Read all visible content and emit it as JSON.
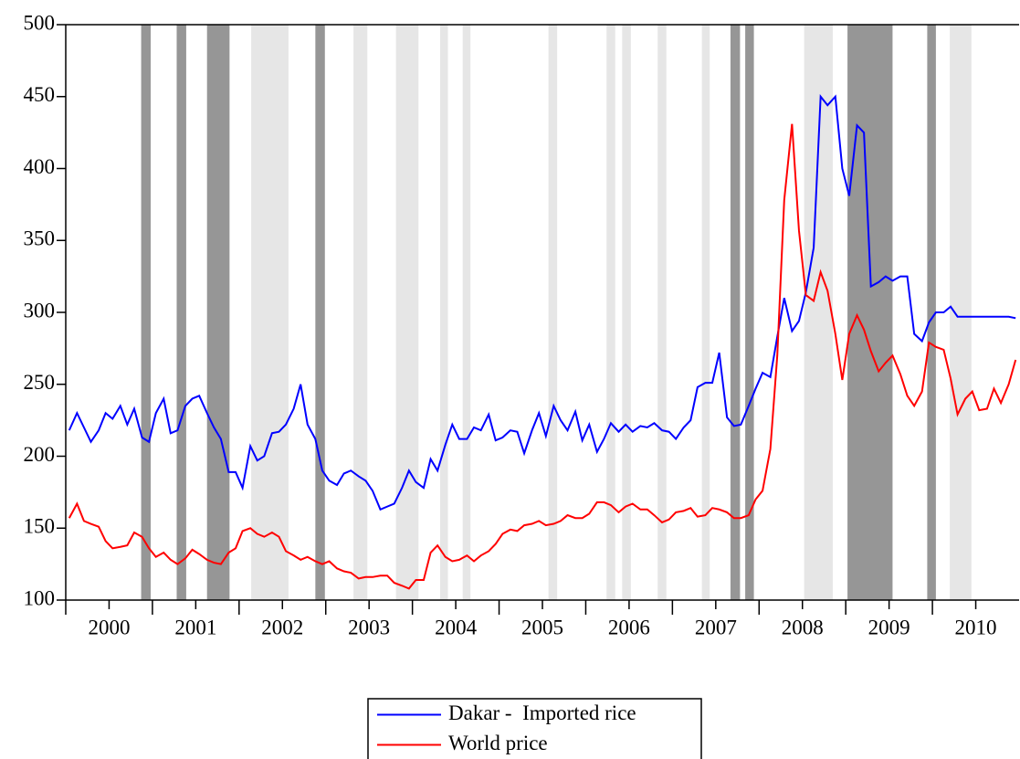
{
  "chart_data": {
    "type": "line",
    "x": [
      2000.04,
      2000.13,
      2000.21,
      2000.29,
      2000.38,
      2000.46,
      2000.54,
      2000.63,
      2000.71,
      2000.79,
      2000.88,
      2000.96,
      2001.04,
      2001.13,
      2001.21,
      2001.29,
      2001.38,
      2001.46,
      2001.54,
      2001.63,
      2001.71,
      2001.79,
      2001.88,
      2001.96,
      2002.04,
      2002.13,
      2002.21,
      2002.29,
      2002.38,
      2002.46,
      2002.54,
      2002.63,
      2002.71,
      2002.79,
      2002.88,
      2002.96,
      2003.04,
      2003.13,
      2003.21,
      2003.29,
      2003.38,
      2003.46,
      2003.54,
      2003.63,
      2003.71,
      2003.79,
      2003.88,
      2003.96,
      2004.04,
      2004.13,
      2004.21,
      2004.29,
      2004.38,
      2004.46,
      2004.54,
      2004.63,
      2004.71,
      2004.79,
      2004.88,
      2004.96,
      2005.04,
      2005.13,
      2005.21,
      2005.29,
      2005.38,
      2005.46,
      2005.54,
      2005.63,
      2005.71,
      2005.79,
      2005.88,
      2005.96,
      2006.04,
      2006.13,
      2006.21,
      2006.29,
      2006.38,
      2006.46,
      2006.54,
      2006.63,
      2006.71,
      2006.79,
      2006.88,
      2006.96,
      2007.04,
      2007.13,
      2007.21,
      2007.29,
      2007.38,
      2007.46,
      2007.54,
      2007.63,
      2007.71,
      2007.79,
      2007.88,
      2007.96,
      2008.04,
      2008.13,
      2008.21,
      2008.29,
      2008.38,
      2008.46,
      2008.54,
      2008.63,
      2008.71,
      2008.79,
      2008.88,
      2008.96,
      2009.04,
      2009.13,
      2009.21,
      2009.29,
      2009.38,
      2009.46,
      2009.54,
      2009.63,
      2009.71,
      2009.79,
      2009.88,
      2009.96,
      2010.04,
      2010.13,
      2010.21,
      2010.29,
      2010.38,
      2010.46,
      2010.54,
      2010.63,
      2010.71,
      2010.79,
      2010.88,
      2010.96
    ],
    "series": [
      {
        "name": "Dakar -  Imported rice",
        "color": "#0000ff",
        "values": [
          218,
          230,
          220,
          210,
          218,
          230,
          226,
          235,
          222,
          233,
          213,
          210,
          230,
          240,
          216,
          218,
          235,
          240,
          242,
          230,
          220,
          212,
          189,
          189,
          178,
          207,
          197,
          200,
          216,
          217,
          222,
          233,
          250,
          222,
          212,
          190,
          183,
          180,
          188,
          190,
          186,
          183,
          176,
          163,
          165,
          167,
          178,
          190,
          182,
          178,
          198,
          190,
          208,
          222,
          212,
          212,
          220,
          218,
          229,
          211,
          213,
          218,
          217,
          202,
          218,
          230,
          214,
          235,
          225,
          218,
          231,
          211,
          222,
          203,
          212,
          223,
          217,
          222,
          217,
          221,
          220,
          223,
          218,
          217,
          212,
          220,
          225,
          248,
          251,
          251,
          272,
          227,
          221,
          222,
          235,
          247,
          258,
          255,
          283,
          310,
          287,
          294,
          314,
          345,
          450,
          444,
          450,
          400,
          381,
          430,
          425,
          318,
          321,
          325,
          322,
          325,
          325,
          285,
          280,
          293,
          300,
          300,
          304,
          297,
          297,
          297,
          297,
          297,
          297,
          297,
          297,
          296
        ]
      },
      {
        "name": "World price",
        "color": "#ff0000",
        "values": [
          157,
          167,
          155,
          153,
          151,
          141,
          136,
          137,
          138,
          147,
          144,
          136,
          130,
          133,
          128,
          125,
          129,
          135,
          132,
          128,
          126,
          125,
          133,
          136,
          148,
          150,
          146,
          144,
          147,
          144,
          134,
          131,
          128,
          130,
          127,
          125,
          127,
          122,
          120,
          119,
          115,
          116,
          116,
          117,
          117,
          112,
          110,
          108,
          114,
          114,
          133,
          138,
          130,
          127,
          128,
          131,
          127,
          131,
          134,
          139,
          146,
          149,
          148,
          152,
          153,
          155,
          152,
          153,
          155,
          159,
          157,
          157,
          160,
          168,
          168,
          166,
          161,
          165,
          167,
          163,
          163,
          159,
          154,
          156,
          161,
          162,
          164,
          158,
          159,
          164,
          163,
          161,
          157,
          157,
          159,
          170,
          176,
          205,
          270,
          378,
          431,
          357,
          312,
          308,
          328,
          315,
          285,
          253,
          285,
          298,
          288,
          273,
          259,
          265,
          270,
          257,
          242,
          235,
          245,
          279,
          276,
          274,
          254,
          229,
          240,
          245,
          232,
          233,
          247,
          237,
          250,
          267
        ]
      }
    ],
    "bands": [
      {
        "start": 2000.87,
        "end": 2000.98,
        "color": "#969696"
      },
      {
        "start": 2001.28,
        "end": 2001.39,
        "color": "#969696"
      },
      {
        "start": 2001.63,
        "end": 2001.89,
        "color": "#969696"
      },
      {
        "start": 2002.88,
        "end": 2002.99,
        "color": "#969696"
      },
      {
        "start": 2007.67,
        "end": 2007.78,
        "color": "#969696"
      },
      {
        "start": 2007.84,
        "end": 2007.94,
        "color": "#969696"
      },
      {
        "start": 2009.02,
        "end": 2009.54,
        "color": "#969696"
      },
      {
        "start": 2009.94,
        "end": 2010.04,
        "color": "#969696"
      },
      {
        "start": 2002.14,
        "end": 2002.57,
        "color": "#e6e6e6"
      },
      {
        "start": 2003.32,
        "end": 2003.48,
        "color": "#e6e6e6"
      },
      {
        "start": 2003.81,
        "end": 2004.07,
        "color": "#e6e6e6"
      },
      {
        "start": 2004.32,
        "end": 2004.41,
        "color": "#e6e6e6"
      },
      {
        "start": 2004.58,
        "end": 2004.67,
        "color": "#e6e6e6"
      },
      {
        "start": 2005.57,
        "end": 2005.67,
        "color": "#e6e6e6"
      },
      {
        "start": 2006.24,
        "end": 2006.34,
        "color": "#e6e6e6"
      },
      {
        "start": 2006.42,
        "end": 2006.52,
        "color": "#e6e6e6"
      },
      {
        "start": 2006.83,
        "end": 2006.93,
        "color": "#e6e6e6"
      },
      {
        "start": 2007.34,
        "end": 2007.43,
        "color": "#e6e6e6"
      },
      {
        "start": 2008.52,
        "end": 2008.85,
        "color": "#e6e6e6"
      },
      {
        "start": 2010.2,
        "end": 2010.45,
        "color": "#e6e6e6"
      }
    ],
    "xlim": [
      2000,
      2011
    ],
    "xticks": [
      {
        "value": 2000.5,
        "label": "2000"
      },
      {
        "value": 2001.5,
        "label": "2001"
      },
      {
        "value": 2002.5,
        "label": "2002"
      },
      {
        "value": 2003.5,
        "label": "2003"
      },
      {
        "value": 2004.5,
        "label": "2004"
      },
      {
        "value": 2005.5,
        "label": "2005"
      },
      {
        "value": 2006.5,
        "label": "2006"
      },
      {
        "value": 2007.5,
        "label": "2007"
      },
      {
        "value": 2008.5,
        "label": "2008"
      },
      {
        "value": 2009.5,
        "label": "2009"
      },
      {
        "value": 2010.5,
        "label": "2010"
      }
    ],
    "ylim": [
      100,
      500
    ],
    "yticks": [
      100,
      150,
      200,
      250,
      300,
      350,
      400,
      450,
      500
    ],
    "legend": "bottom"
  }
}
